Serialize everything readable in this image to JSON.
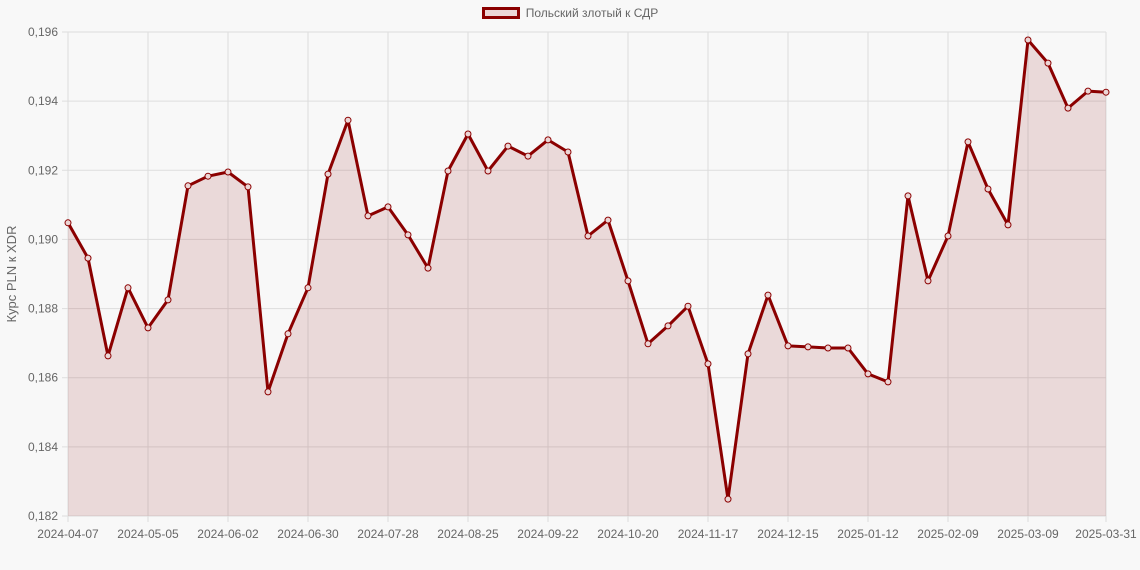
{
  "chart_data": {
    "type": "line",
    "title": "",
    "legend": [
      "Польский злотый к СДР"
    ],
    "legend_position": "top",
    "xlabel": "",
    "ylabel": "Курс PLN к XDR",
    "ylim": [
      0.182,
      0.196
    ],
    "y_ticks": [
      "0,196",
      "0,194",
      "0,192",
      "0,190",
      "0,188",
      "0,186",
      "0,184",
      "0,182"
    ],
    "x_tick_labels": [
      "2024-04-07",
      "2024-05-05",
      "2024-06-02",
      "2024-06-30",
      "2024-07-28",
      "2024-08-25",
      "2024-09-22",
      "2024-10-20",
      "2024-11-17",
      "2024-12-15",
      "2025-01-12",
      "2025-02-09",
      "2025-03-09",
      "2025-03-31"
    ],
    "grid": true,
    "fill": true,
    "colors": {
      "line": "#8b0000",
      "fill": "rgba(139,0,0,0.12)",
      "grid": "#dddddd",
      "axis_text": "#666666"
    },
    "x": [
      "2024-04-07",
      "2024-04-14",
      "2024-04-21",
      "2024-04-28",
      "2024-05-05",
      "2024-05-12",
      "2024-05-19",
      "2024-05-26",
      "2024-06-02",
      "2024-06-09",
      "2024-06-16",
      "2024-06-23",
      "2024-06-30",
      "2024-07-07",
      "2024-07-14",
      "2024-07-21",
      "2024-07-28",
      "2024-08-04",
      "2024-08-11",
      "2024-08-18",
      "2024-08-25",
      "2024-09-01",
      "2024-09-08",
      "2024-09-15",
      "2024-09-22",
      "2024-09-29",
      "2024-10-06",
      "2024-10-13",
      "2024-10-20",
      "2024-10-27",
      "2024-11-03",
      "2024-11-10",
      "2024-11-17",
      "2024-11-24",
      "2024-12-01",
      "2024-12-08",
      "2024-12-15",
      "2024-12-22",
      "2024-12-29",
      "2025-01-05",
      "2025-01-12",
      "2025-01-19",
      "2025-01-26",
      "2025-02-02",
      "2025-02-09",
      "2025-02-16",
      "2025-02-23",
      "2025-03-02",
      "2025-03-09",
      "2025-03-16",
      "2025-03-23",
      "2025-03-30",
      "2025-03-31"
    ],
    "series": [
      {
        "name": "Польский злотый к СДР",
        "values": [
          0.19048,
          0.18946,
          0.18663,
          0.1886,
          0.18744,
          0.18825,
          0.19155,
          0.19183,
          0.19195,
          0.19152,
          0.18559,
          0.18727,
          0.1886,
          0.19189,
          0.19345,
          0.19068,
          0.19094,
          0.19013,
          0.18917,
          0.19198,
          0.19305,
          0.19198,
          0.1927,
          0.19241,
          0.19288,
          0.19253,
          0.1901,
          0.19056,
          0.1888,
          0.18698,
          0.1875,
          0.18807,
          0.1864,
          0.18249,
          0.18669,
          0.18839,
          0.18692,
          0.18689,
          0.18686,
          0.18686,
          0.18611,
          0.18588,
          0.19126,
          0.1888,
          0.1901,
          0.19282,
          0.19146,
          0.19042,
          0.19577,
          0.1951,
          0.1938,
          0.19429,
          0.19426
        ]
      }
    ]
  }
}
